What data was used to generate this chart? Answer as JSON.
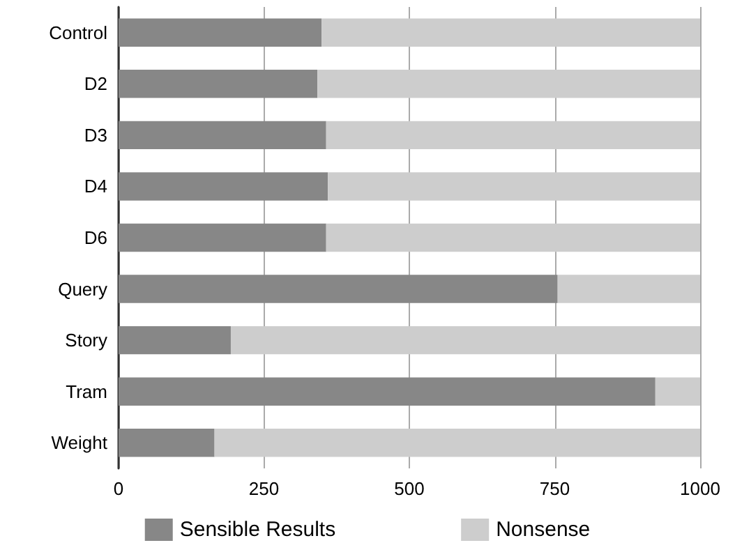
{
  "chart_data": {
    "type": "bar",
    "orientation": "horizontal",
    "stacked": true,
    "categories": [
      "Control",
      "D2",
      "D3",
      "D4",
      "D6",
      "Query",
      "Story",
      "Tram",
      "Weight"
    ],
    "series": [
      {
        "name": "Sensible Results",
        "color": "#878787",
        "values": [
          349,
          342,
          357,
          360,
          357,
          755,
          193,
          923,
          165
        ]
      },
      {
        "name": "Nonsense",
        "color": "#cdcdcd",
        "values": [
          651,
          658,
          643,
          640,
          643,
          245,
          807,
          77,
          835
        ]
      }
    ],
    "xlim": [
      0,
      1000
    ],
    "xticks": [
      0,
      250,
      500,
      750,
      1000
    ],
    "grid": "x",
    "legend": "bottom"
  }
}
